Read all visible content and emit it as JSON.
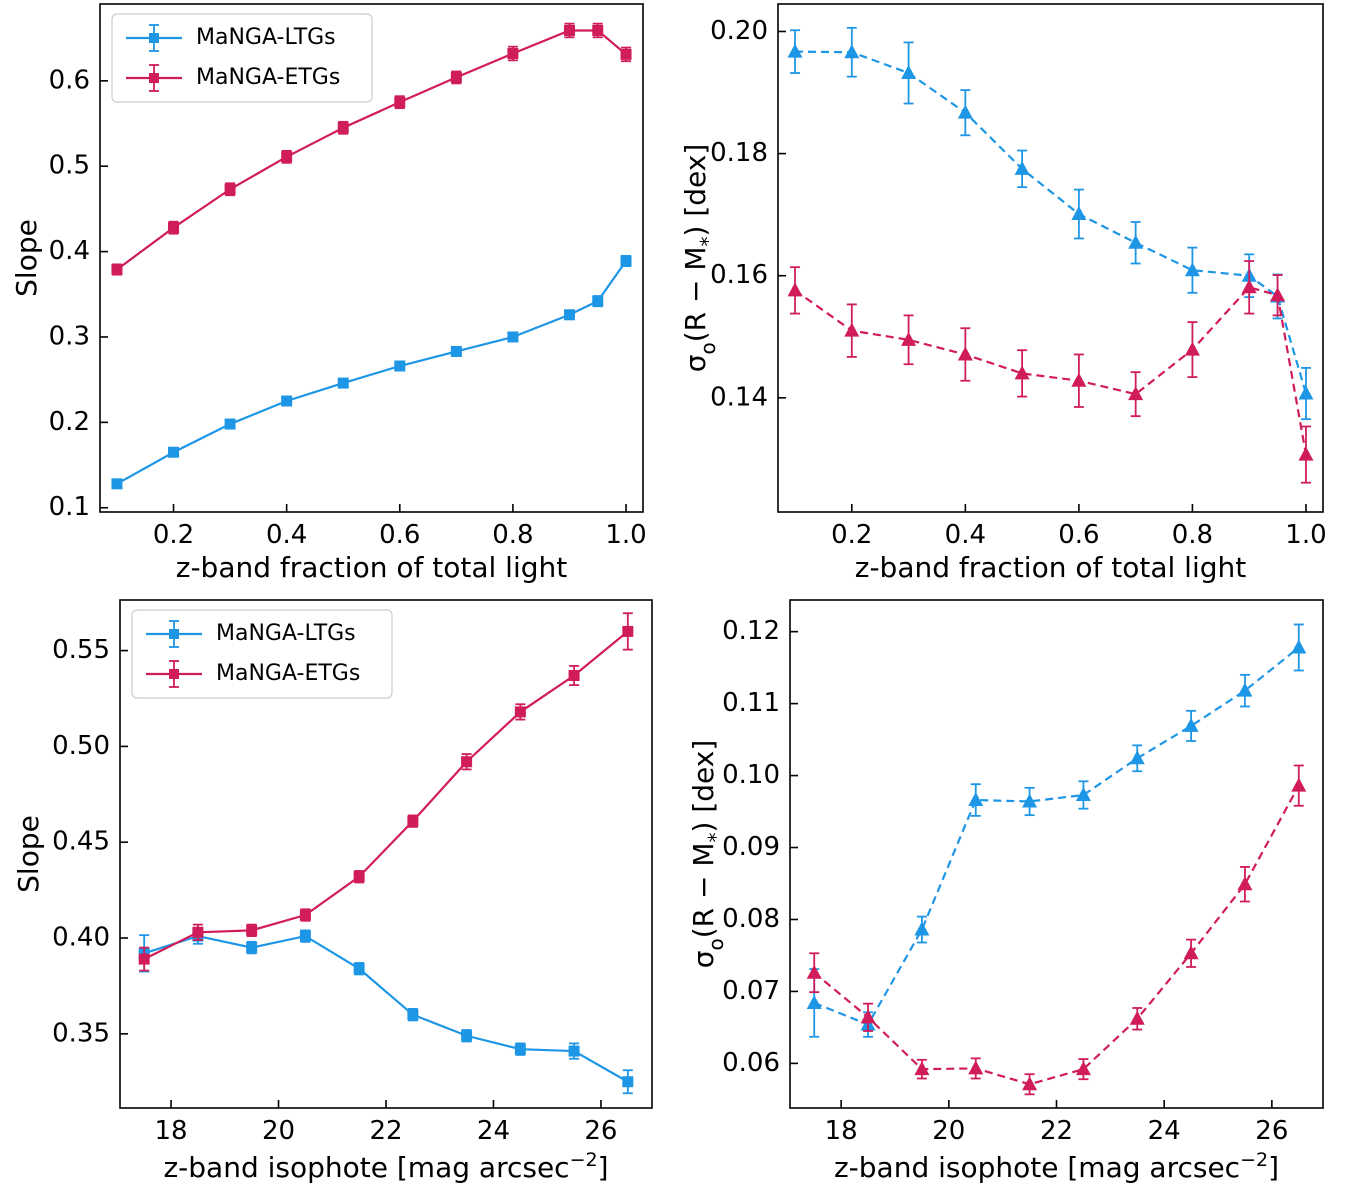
{
  "colors": {
    "ltg": "#1e96e6",
    "etg": "#d01c5a"
  },
  "chart_data": [
    {
      "type": "line",
      "panel": "top-left",
      "xlabel": "z-band fraction of total light",
      "ylabel": "Slope",
      "xlim": [
        0.07,
        1.03
      ],
      "ylim": [
        0.095,
        0.69
      ],
      "xticks": [
        0.2,
        0.4,
        0.6,
        0.8,
        1.0
      ],
      "xtick_labels": [
        "0.2",
        "0.4",
        "0.6",
        "0.8",
        "1.0"
      ],
      "yticks": [
        0.1,
        0.2,
        0.3,
        0.4,
        0.5,
        0.6
      ],
      "ytick_labels": [
        "0.1",
        "0.2",
        "0.3",
        "0.4",
        "0.5",
        "0.6"
      ],
      "marker": "square",
      "linestyle": "solid",
      "legend": "upper-left",
      "x": [
        0.1,
        0.2,
        0.3,
        0.4,
        0.5,
        0.6,
        0.7,
        0.8,
        0.9,
        0.95,
        1.0
      ],
      "series": [
        {
          "name": "MaNGA-LTGs",
          "color": "#1e96e6",
          "values": [
            0.128,
            0.165,
            0.198,
            0.225,
            0.246,
            0.266,
            0.283,
            0.3,
            0.326,
            0.342,
            0.389
          ],
          "errors": [
            0.005,
            0.005,
            0.005,
            0.005,
            0.005,
            0.005,
            0.005,
            0.005,
            0.005,
            0.006,
            0.006
          ]
        },
        {
          "name": "MaNGA-ETGs",
          "color": "#d01c5a",
          "values": [
            0.379,
            0.428,
            0.473,
            0.511,
            0.545,
            0.575,
            0.604,
            0.632,
            0.659,
            0.659,
            0.631
          ],
          "errors": [
            0.006,
            0.007,
            0.007,
            0.007,
            0.007,
            0.007,
            0.007,
            0.008,
            0.008,
            0.008,
            0.008
          ]
        }
      ]
    },
    {
      "type": "line",
      "panel": "top-right",
      "xlabel": "z-band fraction of total light",
      "ylabel": "σ₀(R − M*) [dex]",
      "xlim": [
        0.07,
        1.03
      ],
      "ylim": [
        0.1213,
        0.2045
      ],
      "xticks": [
        0.2,
        0.4,
        0.6,
        0.8,
        1.0
      ],
      "xtick_labels": [
        "0.2",
        "0.4",
        "0.6",
        "0.8",
        "1.0"
      ],
      "yticks": [
        0.14,
        0.16,
        0.18,
        0.2
      ],
      "ytick_labels": [
        "0.14",
        "0.16",
        "0.18",
        "0.20"
      ],
      "marker": "triangle",
      "linestyle": "dashed",
      "x": [
        0.1,
        0.2,
        0.3,
        0.4,
        0.5,
        0.6,
        0.7,
        0.8,
        0.9,
        0.95,
        1.0
      ],
      "series": [
        {
          "color": "#1e96e6",
          "values": [
            0.1967,
            0.1966,
            0.1932,
            0.1867,
            0.1775,
            0.1701,
            0.1654,
            0.1609,
            0.16,
            0.1566,
            0.1407
          ],
          "errors": [
            0.0035,
            0.004,
            0.005,
            0.0037,
            0.003,
            0.004,
            0.0034,
            0.0037,
            0.0035,
            0.0036,
            0.0042
          ]
        },
        {
          "color": "#d01c5a",
          "values": [
            0.1576,
            0.151,
            0.1495,
            0.1471,
            0.144,
            0.1428,
            0.1406,
            0.1479,
            0.1581,
            0.1568,
            0.1307
          ],
          "errors": [
            0.0038,
            0.0043,
            0.004,
            0.0043,
            0.0038,
            0.0043,
            0.0036,
            0.0045,
            0.0043,
            0.0033,
            0.0046
          ]
        }
      ]
    },
    {
      "type": "line",
      "panel": "bottom-left",
      "xlabel": "z-band isophote [mag arcsec⁻²]",
      "ylabel": "Slope",
      "xlim": [
        17.05,
        26.95
      ],
      "ylim": [
        0.3113,
        0.5764
      ],
      "xticks": [
        18,
        20,
        22,
        24,
        26
      ],
      "xtick_labels": [
        "18",
        "20",
        "22",
        "24",
        "26"
      ],
      "yticks": [
        0.35,
        0.4,
        0.45,
        0.5,
        0.55
      ],
      "ytick_labels": [
        "0.35",
        "0.40",
        "0.45",
        "0.50",
        "0.55"
      ],
      "marker": "square",
      "linestyle": "solid",
      "legend": "upper-left",
      "x": [
        17.5,
        18.5,
        19.5,
        20.5,
        21.5,
        22.5,
        23.5,
        24.5,
        25.5,
        26.5
      ],
      "series": [
        {
          "name": "MaNGA-LTGs",
          "color": "#1e96e6",
          "values": [
            0.392,
            0.401,
            0.395,
            0.401,
            0.384,
            0.36,
            0.349,
            0.342,
            0.341,
            0.325
          ],
          "errors": [
            0.0095,
            0.004,
            0.003,
            0.003,
            0.003,
            0.003,
            0.003,
            0.003,
            0.004,
            0.006
          ]
        },
        {
          "name": "MaNGA-ETGs",
          "color": "#d01c5a",
          "values": [
            0.389,
            0.403,
            0.404,
            0.412,
            0.432,
            0.461,
            0.492,
            0.518,
            0.537,
            0.56
          ],
          "errors": [
            0.006,
            0.004,
            0.003,
            0.003,
            0.003,
            0.003,
            0.004,
            0.004,
            0.005,
            0.0095
          ]
        }
      ]
    },
    {
      "type": "line",
      "panel": "bottom-right",
      "xlabel": "z-band isophote [mag arcsec⁻²]",
      "ylabel": "σ₀(R − M*) [dex]",
      "xlim": [
        17.05,
        26.95
      ],
      "ylim": [
        0.0538,
        0.1244
      ],
      "xticks": [
        18,
        20,
        22,
        24,
        26
      ],
      "xtick_labels": [
        "18",
        "20",
        "22",
        "24",
        "26"
      ],
      "yticks": [
        0.06,
        0.07,
        0.08,
        0.09,
        0.1,
        0.11,
        0.12
      ],
      "ytick_labels": [
        "0.06",
        "0.07",
        "0.08",
        "0.09",
        "0.10",
        "0.11",
        "0.12"
      ],
      "marker": "triangle",
      "linestyle": "dashed",
      "x": [
        17.5,
        18.5,
        19.5,
        20.5,
        21.5,
        22.5,
        23.5,
        24.5,
        25.5,
        26.5
      ],
      "series": [
        {
          "color": "#1e96e6",
          "values": [
            0.0684,
            0.0654,
            0.0786,
            0.0966,
            0.0964,
            0.0973,
            0.1024,
            0.1069,
            0.1118,
            0.1178
          ],
          "errors": [
            0.0047,
            0.0017,
            0.0018,
            0.0022,
            0.0019,
            0.0019,
            0.0018,
            0.0021,
            0.0022,
            0.0032
          ]
        },
        {
          "color": "#d01c5a",
          "values": [
            0.0726,
            0.0664,
            0.0592,
            0.0593,
            0.0571,
            0.0592,
            0.0662,
            0.0753,
            0.0849,
            0.0986
          ],
          "errors": [
            0.0027,
            0.0019,
            0.0013,
            0.0014,
            0.0014,
            0.0014,
            0.0015,
            0.0019,
            0.0024,
            0.0028
          ]
        }
      ]
    }
  ]
}
